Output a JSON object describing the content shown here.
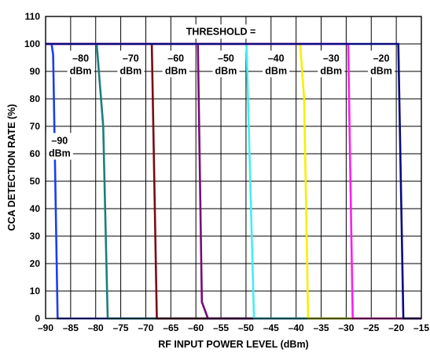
{
  "chart_data": {
    "type": "line",
    "title": "",
    "xlabel": "RF INPUT POWER LEVEL (dBm)",
    "ylabel": "CCA DETECTION RATE (%)",
    "xlim": [
      -90,
      -15
    ],
    "ylim": [
      0,
      110
    ],
    "x_ticks": [
      "–90",
      "–85",
      "–80",
      "–75",
      "–70",
      "–65",
      "–60",
      "–55",
      "–50",
      "–45",
      "–40",
      "–35",
      "–30",
      "–25",
      "–20",
      "–15"
    ],
    "y_ticks": [
      "0",
      "10",
      "20",
      "30",
      "40",
      "50",
      "60",
      "70",
      "80",
      "90",
      "100",
      "110"
    ],
    "grid": true,
    "legend_heading": "THRESHOLD =",
    "series": [
      {
        "name": "–90 dBm",
        "color": "#1a3ef0",
        "x": [
          -90,
          -88.8,
          -88.5,
          -87.6,
          -87.5,
          -15
        ],
        "y": [
          100,
          100,
          96,
          0,
          0,
          0
        ]
      },
      {
        "name": "–80 dBm",
        "color": "#1a7f7f",
        "x": [
          -90,
          -79.8,
          -78.5,
          -77.6,
          -77.5,
          -15
        ],
        "y": [
          100,
          100,
          70,
          0,
          0,
          0
        ]
      },
      {
        "name": "–70 dBm",
        "color": "#7a0a14",
        "x": [
          -90,
          -68.8,
          -67.8,
          -67.8,
          -15
        ],
        "y": [
          100,
          100,
          0,
          0,
          0
        ]
      },
      {
        "name": "–60 dBm",
        "color": "#7a0a7a",
        "x": [
          -90,
          -59.6,
          -58.8,
          -57.6,
          -57.5,
          -15
        ],
        "y": [
          100,
          100,
          6,
          0,
          0,
          0
        ]
      },
      {
        "name": "–50 dBm",
        "color": "#3ff0f0",
        "x": [
          -90,
          -49.9,
          -48.4,
          -48.3,
          -15
        ],
        "y": [
          100,
          100,
          0,
          0,
          0
        ]
      },
      {
        "name": "–40 dBm",
        "color": "#f5f000",
        "x": [
          -90,
          -39.2,
          -38.4,
          -37.6,
          -37.5,
          -15
        ],
        "y": [
          100,
          100,
          80,
          0,
          0,
          0
        ]
      },
      {
        "name": "–30 dBm",
        "color": "#ff1cf0",
        "x": [
          -90,
          -29.6,
          -28.7,
          -28.6,
          -15
        ],
        "y": [
          100,
          100,
          0,
          0,
          0
        ]
      },
      {
        "name": "–20 dBm",
        "color": "#0a0a80",
        "x": [
          -90,
          -19.6,
          -18.6,
          -18.5,
          -15
        ],
        "y": [
          100,
          100,
          0,
          0,
          0
        ]
      }
    ],
    "annotations": [
      {
        "line1": "–90",
        "line2": "dBm",
        "at": [
          -87.2,
          61
        ]
      },
      {
        "line1": "–80",
        "line2": "dBm",
        "at": [
          -83,
          91
        ]
      },
      {
        "line1": "–70",
        "line2": "dBm",
        "at": [
          -73,
          91
        ]
      },
      {
        "line1": "–60",
        "line2": "dBm",
        "at": [
          -64,
          91
        ]
      },
      {
        "line1": "–50",
        "line2": "dBm",
        "at": [
          -54,
          91
        ]
      },
      {
        "line1": "–40",
        "line2": "dBm",
        "at": [
          -44,
          91
        ]
      },
      {
        "line1": "–30",
        "line2": "dBm",
        "at": [
          -33,
          91
        ]
      },
      {
        "line1": "–20",
        "line2": "dBm",
        "at": [
          -23,
          91
        ]
      }
    ]
  }
}
